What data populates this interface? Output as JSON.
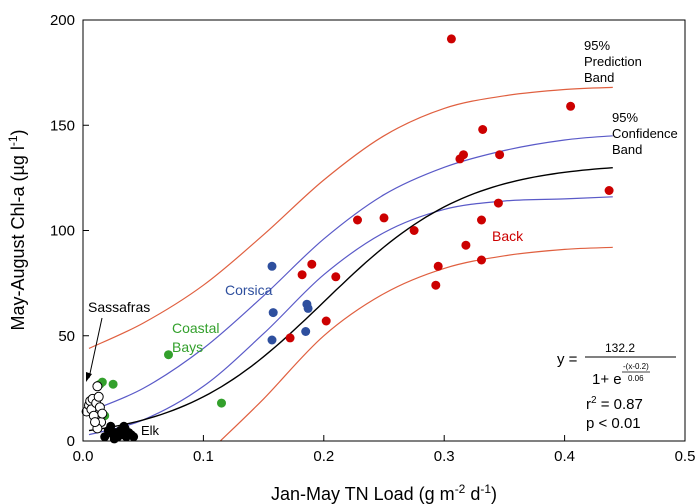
{
  "chart_data": {
    "type": "scatter",
    "title": "",
    "xlabel": "Jan-May TN Load (g m",
    "xlabel_sup1": "-2",
    "xlabel_mid": " d",
    "xlabel_sup2": "-1",
    "xlabel_end": ")",
    "ylabel": "May-August Chl-a (µg l",
    "ylabel_sup": "-1",
    "ylabel_end": ")",
    "xlim": [
      0.0,
      0.5
    ],
    "ylim": [
      0,
      200
    ],
    "x_ticks": [
      0.0,
      0.1,
      0.2,
      0.3,
      0.4,
      0.5
    ],
    "x_tick_labels": [
      "0.0",
      "0.1",
      "0.2",
      "0.3",
      "0.4",
      "0.5"
    ],
    "y_ticks": [
      0,
      50,
      100,
      150,
      200
    ],
    "y_tick_labels": [
      "0",
      "50",
      "100",
      "150",
      "200"
    ],
    "grid": false,
    "colors": {
      "back": "#cc0000",
      "corsica": "#2e4f9e",
      "coastal": "#33a02c",
      "elk": "#000000",
      "sassafras": "#000000",
      "fit": "#000000",
      "confidence": "#5a5ac8",
      "prediction": "#e06040"
    },
    "series": [
      {
        "name": "Back",
        "color": "#cc0000",
        "marker": "filled",
        "points": [
          [
            0.172,
            49
          ],
          [
            0.182,
            79
          ],
          [
            0.19,
            84
          ],
          [
            0.202,
            57
          ],
          [
            0.21,
            78
          ],
          [
            0.228,
            105
          ],
          [
            0.25,
            106
          ],
          [
            0.275,
            100
          ],
          [
            0.293,
            74
          ],
          [
            0.295,
            83
          ],
          [
            0.306,
            191
          ],
          [
            0.313,
            134
          ],
          [
            0.316,
            136
          ],
          [
            0.318,
            93
          ],
          [
            0.331,
            105
          ],
          [
            0.331,
            86
          ],
          [
            0.332,
            148
          ],
          [
            0.345,
            113
          ],
          [
            0.346,
            136
          ],
          [
            0.405,
            159
          ],
          [
            0.437,
            119
          ]
        ]
      },
      {
        "name": "Corsica",
        "color": "#2e4f9e",
        "marker": "filled",
        "points": [
          [
            0.157,
            83
          ],
          [
            0.158,
            61
          ],
          [
            0.157,
            48
          ],
          [
            0.185,
            52
          ],
          [
            0.186,
            65
          ],
          [
            0.187,
            63
          ]
        ]
      },
      {
        "name": "Coastal Bays",
        "color": "#33a02c",
        "marker": "filled",
        "points": [
          [
            0.014,
            27
          ],
          [
            0.016,
            28
          ],
          [
            0.018,
            12
          ],
          [
            0.025,
            27
          ],
          [
            0.071,
            41
          ],
          [
            0.115,
            18
          ]
        ]
      },
      {
        "name": "Sassafras",
        "color": "#000000",
        "marker": "open",
        "points": [
          [
            0.003,
            14
          ],
          [
            0.005,
            17
          ],
          [
            0.006,
            19
          ],
          [
            0.007,
            15
          ],
          [
            0.008,
            20
          ],
          [
            0.009,
            12
          ],
          [
            0.011,
            18
          ],
          [
            0.012,
            26
          ],
          [
            0.013,
            21
          ],
          [
            0.014,
            16
          ],
          [
            0.015,
            9
          ],
          [
            0.016,
            13
          ],
          [
            0.012,
            6
          ],
          [
            0.01,
            9
          ]
        ]
      },
      {
        "name": "Elk",
        "color": "#000000",
        "marker": "filled",
        "points": [
          [
            0.018,
            2
          ],
          [
            0.021,
            5
          ],
          [
            0.023,
            7
          ],
          [
            0.025,
            3
          ],
          [
            0.027,
            4
          ],
          [
            0.029,
            2
          ],
          [
            0.031,
            5
          ],
          [
            0.033,
            3
          ],
          [
            0.035,
            6
          ],
          [
            0.036,
            2
          ],
          [
            0.038,
            4
          ],
          [
            0.04,
            3
          ],
          [
            0.042,
            2
          ],
          [
            0.034,
            7
          ],
          [
            0.026,
            1
          ]
        ]
      }
    ],
    "fit_line": {
      "label": "",
      "a": 132.2,
      "x0": 0.2,
      "b": 0.06
    },
    "bands": {
      "confidence_label_1": "95%",
      "confidence_label_2": "Confidence",
      "confidence_label_3": "Band",
      "prediction_label_1": "95%",
      "prediction_label_2": "Prediction",
      "prediction_label_3": "Band",
      "confidence_upper": [
        [
          0.005,
          14
        ],
        [
          0.05,
          25
        ],
        [
          0.1,
          44
        ],
        [
          0.15,
          69
        ],
        [
          0.2,
          96
        ],
        [
          0.25,
          117
        ],
        [
          0.3,
          130
        ],
        [
          0.35,
          138
        ],
        [
          0.4,
          143
        ],
        [
          0.44,
          145
        ]
      ],
      "confidence_lower": [
        [
          0.005,
          3
        ],
        [
          0.05,
          10
        ],
        [
          0.1,
          26
        ],
        [
          0.15,
          51
        ],
        [
          0.2,
          79
        ],
        [
          0.25,
          99
        ],
        [
          0.3,
          110
        ],
        [
          0.35,
          114
        ],
        [
          0.4,
          115
        ],
        [
          0.44,
          116
        ]
      ],
      "prediction_upper": [
        [
          0.005,
          44
        ],
        [
          0.05,
          56
        ],
        [
          0.1,
          74
        ],
        [
          0.15,
          98
        ],
        [
          0.2,
          124
        ],
        [
          0.25,
          145
        ],
        [
          0.3,
          158
        ],
        [
          0.35,
          164
        ],
        [
          0.4,
          167
        ],
        [
          0.44,
          168
        ]
      ],
      "prediction_lower": [
        [
          0.114,
          0
        ],
        [
          0.15,
          20
        ],
        [
          0.2,
          50
        ],
        [
          0.25,
          70
        ],
        [
          0.3,
          82
        ],
        [
          0.35,
          88
        ],
        [
          0.4,
          91
        ],
        [
          0.44,
          92
        ]
      ]
    },
    "annotations": {
      "sassafras": "Sassafras",
      "elk": "Elk",
      "coastal_1": "Coastal",
      "coastal_2": "Bays",
      "corsica": "Corsica",
      "back": "Back",
      "eq_y": "y =",
      "eq_num": "132.2",
      "eq_den_base": "1+ e",
      "eq_exp_num": "-(x-0.2)",
      "eq_exp_den": "0.06",
      "r2_label": "r",
      "r2_sup": "2",
      "r2_value": " = 0.87",
      "p_value": "p < 0.01"
    }
  }
}
